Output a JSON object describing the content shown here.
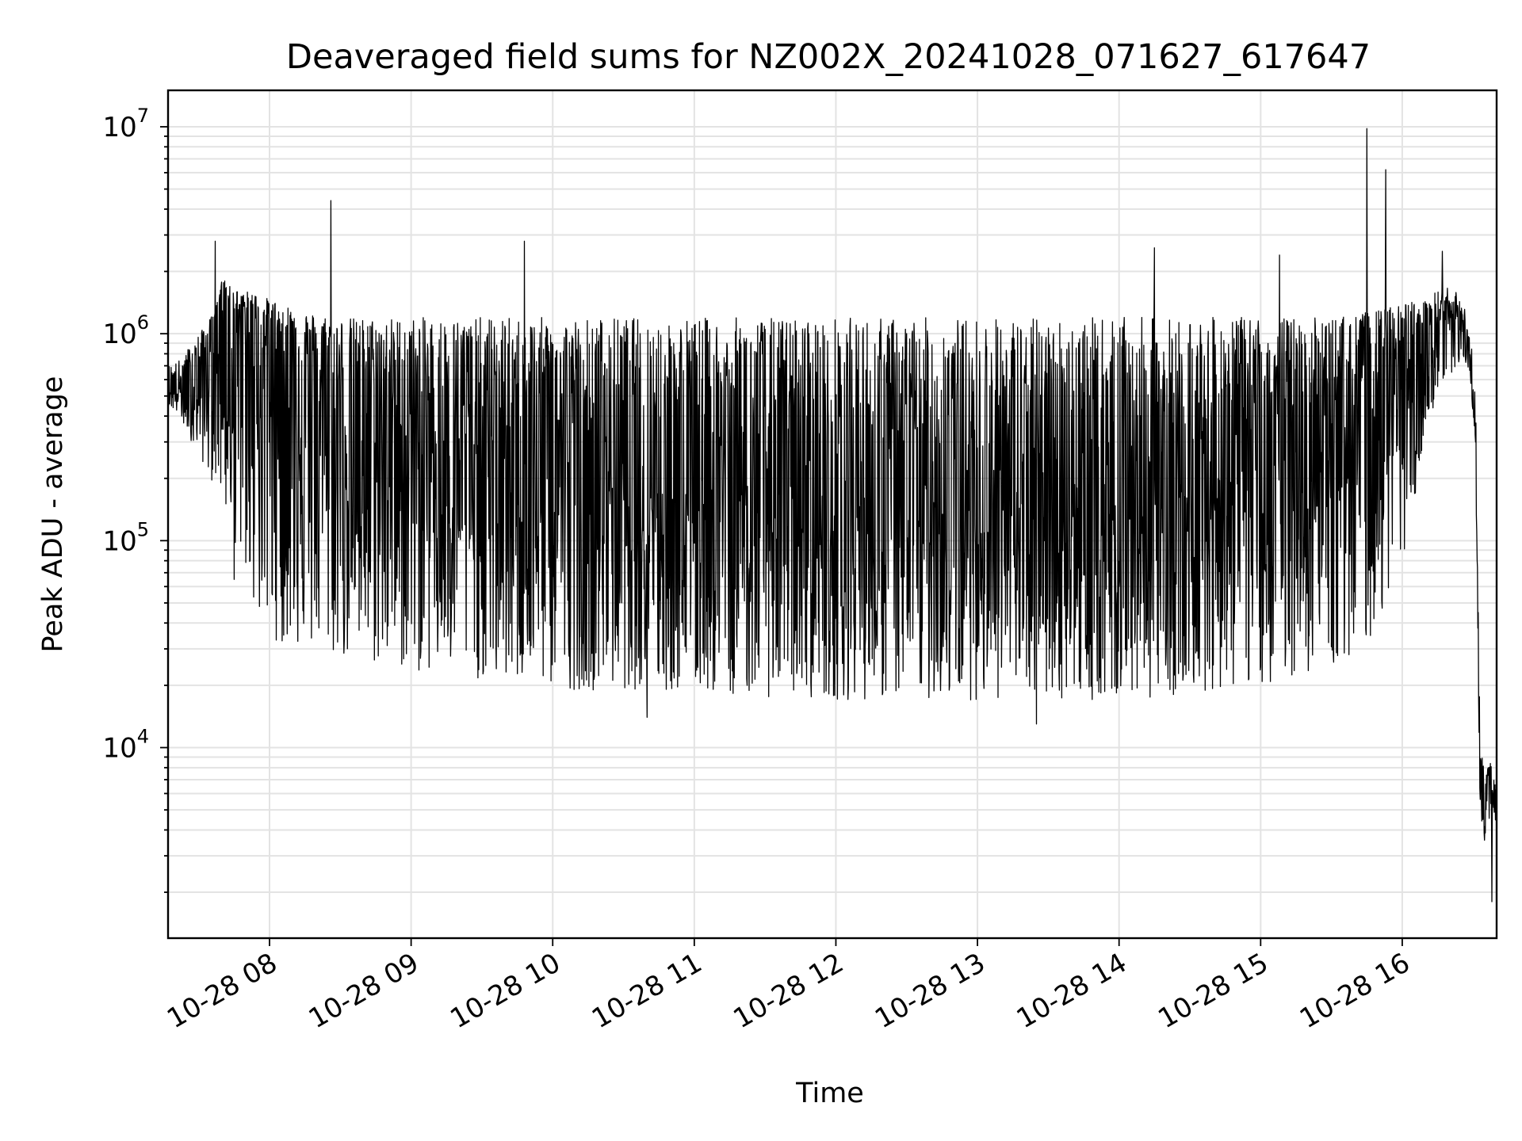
{
  "chart_data": {
    "type": "line",
    "title": "Deaveraged field sums for NZ002X_20241028_071627_617647",
    "xlabel": "Time",
    "ylabel": "Peak ADU - average",
    "y_scale": "log",
    "grid": "on (major and minor)",
    "legend": "none",
    "line_color": "#000000",
    "x_range": [
      "2024-10-28 07:17",
      "2024-10-28 16:40"
    ],
    "ylim": [
      1200,
      15000000
    ],
    "x_ticks": [
      "10-28 08",
      "10-28 09",
      "10-28 10",
      "10-28 11",
      "10-28 12",
      "10-28 13",
      "10-28 14",
      "10-28 15",
      "10-28 16"
    ],
    "y_ticks": [
      {
        "value": 10000,
        "base": "10",
        "exp": "4"
      },
      {
        "value": 100000,
        "base": "10",
        "exp": "5"
      },
      {
        "value": 1000000,
        "base": "10",
        "exp": "6"
      },
      {
        "value": 10000000,
        "base": "10",
        "exp": "7"
      }
    ],
    "series": [
      {
        "x": [
          "07:17",
          "07:22",
          "07:27",
          "07:33",
          "07:37",
          "07:40",
          "07:43",
          "07:48",
          "07:52",
          "07:55",
          "07:58",
          "08:05",
          "08:10",
          "08:15",
          "08:20",
          "08:25",
          "08:30",
          "08:38",
          "08:45",
          "08:52",
          "09:00",
          "09:10",
          "09:20",
          "09:30",
          "09:40",
          "09:50",
          "10:00",
          "10:10",
          "10:20",
          "10:30",
          "10:40",
          "10:50",
          "11:00",
          "11:15",
          "11:30",
          "11:45",
          "12:00",
          "12:15",
          "12:30",
          "12:45",
          "13:00",
          "13:15",
          "13:30",
          "13:45",
          "14:00",
          "14:15",
          "14:30",
          "14:45",
          "15:00",
          "15:15",
          "15:30",
          "15:40",
          "15:50",
          "16:00",
          "16:05",
          "16:10",
          "16:15",
          "16:20",
          "16:25",
          "16:28",
          "16:31",
          "16:33",
          "16:35",
          "16:37",
          "16:40"
        ],
        "y": [
          550000,
          520000,
          600000,
          780000,
          1000000,
          1850000,
          1300000,
          1200000,
          1150000,
          1100000,
          1000000,
          900000,
          800000,
          650000,
          550000,
          500000,
          450000,
          400000,
          400000,
          380000,
          360000,
          340000,
          320000,
          300000,
          290000,
          280000,
          270000,
          260000,
          250000,
          240000,
          230000,
          220000,
          210000,
          200000,
          190000,
          185000,
          180000,
          175000,
          170000,
          165000,
          160000,
          160000,
          165000,
          170000,
          180000,
          190000,
          210000,
          240000,
          280000,
          330000,
          380000,
          420000,
          500000,
          700000,
          850000,
          950000,
          1050000,
          1150000,
          1100000,
          900000,
          350000,
          6000,
          5000,
          7000,
          5500
        ],
        "lower_envelope": [
          450000,
          400000,
          300000,
          220000,
          180000,
          150000,
          110000,
          80000,
          55000,
          40000,
          35000,
          32000,
          30000,
          29000,
          28000,
          27000,
          26000,
          25000,
          24000,
          24000,
          23000,
          22000,
          22000,
          21000,
          20000,
          20000,
          19000,
          19000,
          19000,
          19000,
          19000,
          18000,
          18000,
          18000,
          17500,
          17500,
          17000,
          17000,
          17000,
          17000,
          17000,
          17000,
          17000,
          17000,
          17000,
          17500,
          18000,
          19000,
          20000,
          22000,
          24000,
          26000,
          40000,
          80000,
          150000,
          300000,
          450000,
          600000,
          700000,
          650000,
          300000,
          4500,
          3500,
          4000,
          4000
        ],
        "upper_envelope": [
          700000,
          750000,
          900000,
          1100000,
          1300000,
          1850000,
          1700000,
          1600000,
          1600000,
          1550000,
          1500000,
          1400000,
          1350000,
          1300000,
          1250000,
          1250000,
          1200000,
          1200000,
          1200000,
          1200000,
          1200000,
          1200000,
          1200000,
          1200000,
          1200000,
          1200000,
          1200000,
          1200000,
          1200000,
          1200000,
          1200000,
          1200000,
          1200000,
          1200000,
          1200000,
          1200000,
          1200000,
          1200000,
          1200000,
          1200000,
          1200000,
          1200000,
          1200000,
          1200000,
          1200000,
          1200000,
          1200000,
          1200000,
          1200000,
          1200000,
          1200000,
          1250000,
          1300000,
          1400000,
          1450000,
          1500000,
          1600000,
          1700000,
          1500000,
          1200000,
          600000,
          10000,
          8000,
          9500,
          7000
        ],
        "spikes": [
          {
            "x": "07:37",
            "y": 2800000
          },
          {
            "x": "08:26",
            "y": 4400000
          },
          {
            "x": "09:48",
            "y": 2800000
          },
          {
            "x": "14:15",
            "y": 2600000
          },
          {
            "x": "15:08",
            "y": 2400000
          },
          {
            "x": "15:45",
            "y": 9800000
          },
          {
            "x": "15:53",
            "y": 6200000
          },
          {
            "x": "16:17",
            "y": 2500000
          },
          {
            "x": "16:38",
            "y": 1800
          },
          {
            "x": "07:45",
            "y": 65000
          },
          {
            "x": "10:40",
            "y": 14000
          },
          {
            "x": "13:25",
            "y": 13000
          }
        ]
      }
    ]
  }
}
